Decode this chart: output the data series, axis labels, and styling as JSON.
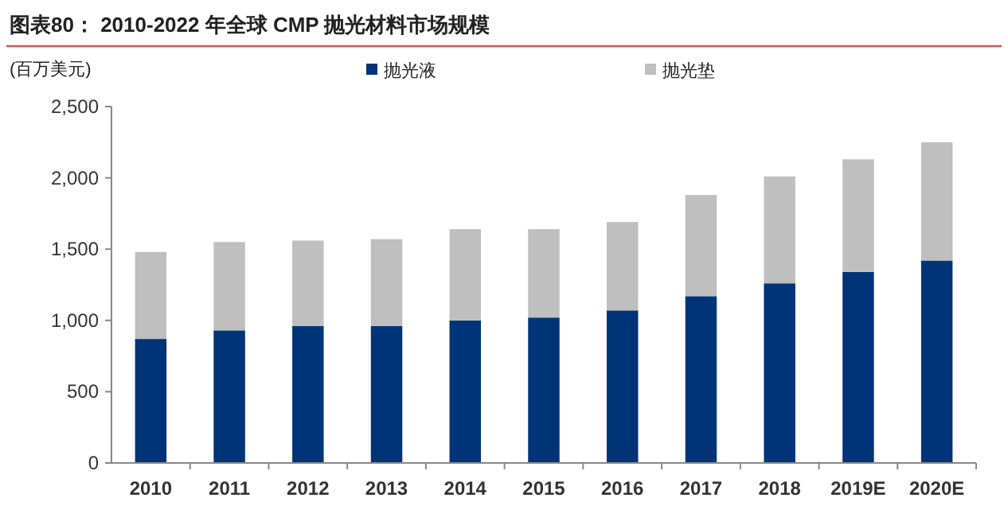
{
  "chart_data": {
    "type": "bar",
    "title": "图表80：  2010-2022 年全球 CMP 抛光材料市场规模",
    "ylabel": "(百万美元)",
    "stacked": true,
    "legend": "top",
    "grid": false,
    "categories": [
      "2010",
      "2011",
      "2012",
      "2013",
      "2014",
      "2015",
      "2016",
      "2017",
      "2018",
      "2019E",
      "2020E"
    ],
    "series": [
      {
        "name": "抛光液",
        "color": "#003478",
        "values": [
          870,
          930,
          960,
          960,
          1000,
          1020,
          1070,
          1170,
          1260,
          1340,
          1420
        ]
      },
      {
        "name": "抛光垫",
        "color": "#bfbfbf",
        "values": [
          610,
          620,
          600,
          610,
          640,
          620,
          620,
          710,
          750,
          790,
          830
        ]
      }
    ],
    "ylim": [
      0,
      2500
    ],
    "yticks": [
      {
        "value": 0,
        "label": "0"
      },
      {
        "value": 500,
        "label": "500"
      },
      {
        "value": 1000,
        "label": "1,000"
      },
      {
        "value": 1500,
        "label": "1,500"
      },
      {
        "value": 2000,
        "label": "2,000"
      },
      {
        "value": 2500,
        "label": "2,500"
      }
    ]
  }
}
